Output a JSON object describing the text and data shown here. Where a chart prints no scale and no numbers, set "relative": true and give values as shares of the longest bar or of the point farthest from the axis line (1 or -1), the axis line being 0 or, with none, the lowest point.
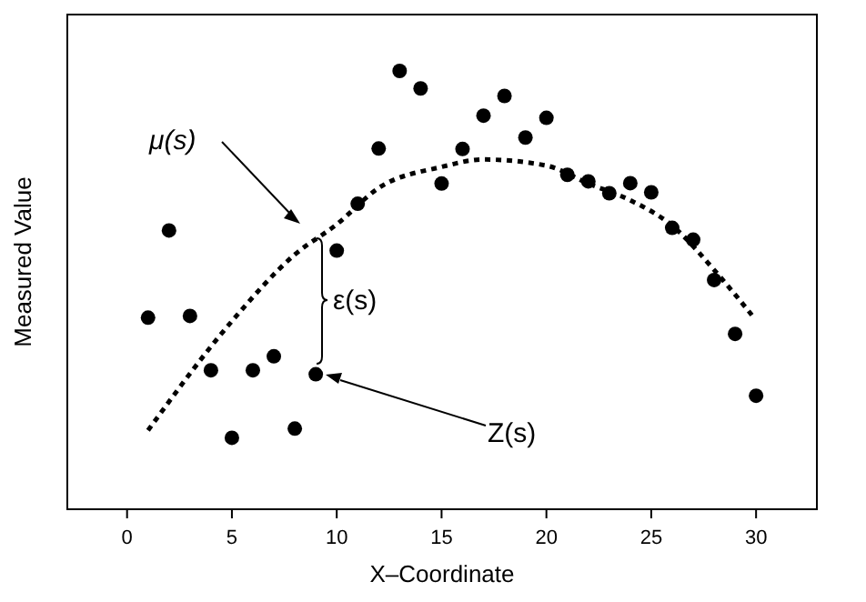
{
  "chart_data": {
    "type": "scatter",
    "xlabel": "X–Coordinate",
    "ylabel": "Measured Value",
    "relative": true,
    "xlim": [
      -2.85,
      32.9
    ],
    "xticks": [
      0,
      5,
      10,
      15,
      20,
      25,
      30
    ],
    "grid": false,
    "series": [
      {
        "color": "#000000",
        "marker": "circle",
        "x": [
          1,
          2,
          3,
          4,
          5,
          6,
          7,
          8,
          9,
          10,
          11,
          12,
          13,
          14,
          15,
          16,
          17,
          18,
          19,
          20,
          21,
          22,
          23,
          24,
          25,
          26,
          27,
          28,
          29,
          30
        ],
        "values": [
          0.437,
          0.636,
          0.441,
          0.317,
          0.163,
          0.317,
          0.349,
          0.184,
          0.308,
          0.59,
          0.697,
          0.823,
          1,
          0.96,
          0.743,
          0.822,
          0.898,
          0.943,
          0.848,
          0.893,
          0.763,
          0.748,
          0.721,
          0.744,
          0.723,
          0.642,
          0.615,
          0.523,
          0.4,
          0.259
        ]
      },
      {
        "type": "line",
        "color": "#000000",
        "line_style": "dotted",
        "x": [
          1,
          5,
          8,
          10,
          12,
          15,
          17,
          20,
          22,
          24,
          26,
          28,
          29.8
        ],
        "values": [
          0.18,
          0.429,
          0.581,
          0.65,
          0.733,
          0.781,
          0.798,
          0.784,
          0.743,
          0.705,
          0.647,
          0.546,
          0.443
        ]
      }
    ],
    "annotations": [
      "μ(s)",
      "ε(s)",
      "Z(s)"
    ]
  }
}
